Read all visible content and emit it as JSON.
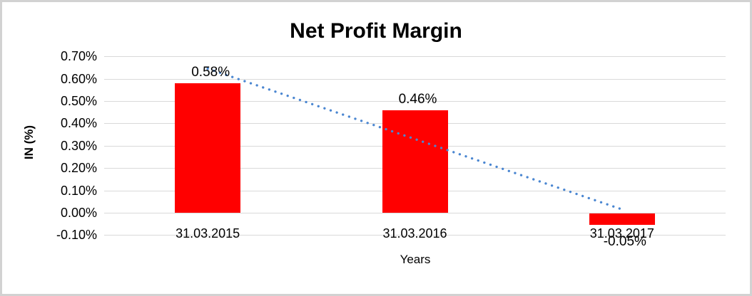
{
  "chart_data": {
    "type": "bar",
    "title": "Net Profit Margin",
    "xlabel": "Years",
    "ylabel": "IN (%)",
    "categories": [
      "31.03.2015",
      "31.03.2016",
      "31.03.2017"
    ],
    "values": [
      0.58,
      0.46,
      -0.05
    ],
    "data_labels": [
      "0.58%",
      "0.46%",
      "-0.05%"
    ],
    "ylim": [
      -0.1,
      0.7
    ],
    "ytick_step": 0.1,
    "ytick_labels": [
      "0.70%",
      "0.60%",
      "0.50%",
      "0.40%",
      "0.30%",
      "0.20%",
      "0.10%",
      "0.00%",
      "-0.10%"
    ],
    "grid": true,
    "legend": "none",
    "bar_color": "#FF0000",
    "gridline_color": "#D9D9D9",
    "text_color": "#000000",
    "background_color": "#FFFFFF",
    "frame_border_color": "#D2D2D2",
    "trendline": {
      "kind": "linear",
      "style": "dotted",
      "color": "#4A86D1",
      "start_value": 0.645,
      "end_value": 0.015
    }
  }
}
